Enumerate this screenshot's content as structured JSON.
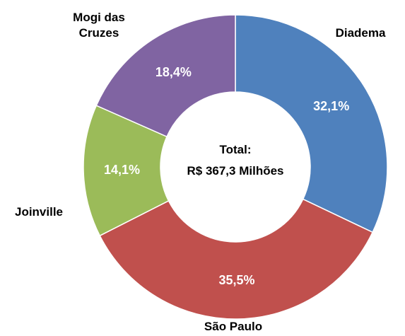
{
  "chart_data": {
    "type": "donut",
    "categories": [
      "Diadema",
      "São Paulo",
      "Joinville",
      "Mogi das Cruzes"
    ],
    "values": [
      32.1,
      35.5,
      14.1,
      18.4
    ],
    "value_labels": [
      "32,1%",
      "35,5%",
      "14,1%",
      "18,4%"
    ],
    "colors": [
      "#4f81bd",
      "#c0504d",
      "#9bbb59",
      "#8064a2"
    ],
    "center_text": [
      "Total:",
      "R$ 367,3 Milhões"
    ]
  }
}
